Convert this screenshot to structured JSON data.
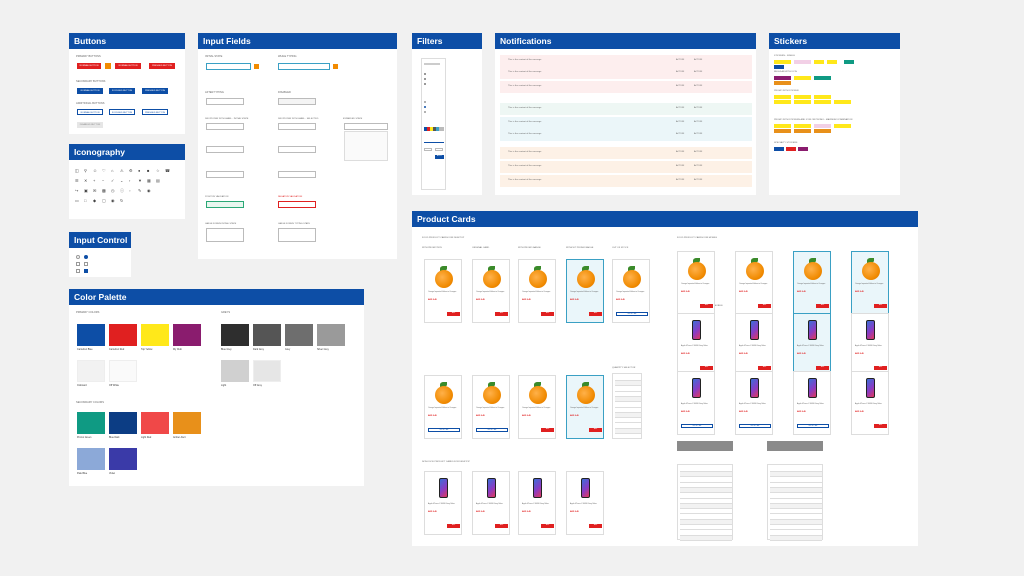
{
  "panels": {
    "buttons": "Buttons",
    "iconography": "Iconography",
    "input_control": "Input Control",
    "color_palette": "Color Palette",
    "input_fields": "Input Fields",
    "filters": "Filters",
    "notifications": "Notifications",
    "stickers": "Stickers",
    "product_cards": "Product Cards"
  },
  "buttons": {
    "primary_label": "PRIMARY BUTTONS",
    "secondary_label": "SECONDARY BUTTONS",
    "additional_label": "ADDITIONAL BUTTONS",
    "normal": "NORMAL BUTTON",
    "focused": "FOCUSED BUTTON",
    "pressed": "PRESSED BUTTON",
    "disabled": "DISABLED BUTTON"
  },
  "palette": {
    "primary_label": "PRIMARY COLORS",
    "secondary_label": "SECONDARY COLORS",
    "grays_label": "GREYS",
    "primary": [
      {
        "name": "Carrefour Blue",
        "color": "#0d4ea6"
      },
      {
        "name": "Carrefour Red",
        "color": "#e02020"
      },
      {
        "name": "Top Yellow",
        "color": "#ffe81a"
      },
      {
        "name": "My Club",
        "color": "#8a1c6e"
      },
      {
        "name": "Clubcard",
        "color": "#f2f2f2"
      },
      {
        "name": "Off White",
        "color": "#fafafa"
      }
    ],
    "secondary": [
      {
        "name": "Promo Green",
        "color": "#0f9a83"
      },
      {
        "name": "Blue Dark",
        "color": "#0c3d84"
      },
      {
        "name": "Light Red",
        "color": "#f04848"
      },
      {
        "name": "Amber Alert",
        "color": "#e8901a"
      },
      {
        "name": "Pale Blue",
        "color": "#8ca9d8"
      },
      {
        "name": "Violet",
        "color": "#3a3aa8"
      }
    ],
    "grays": [
      {
        "name": "Blue Grey",
        "color": "#2e2e2e"
      },
      {
        "name": "Dark Grey",
        "color": "#555555"
      },
      {
        "name": "Grey",
        "color": "#6e6e6e"
      },
      {
        "name": "Silver Grey",
        "color": "#9a9a9a"
      },
      {
        "name": "Light",
        "color": "#d0d0d0"
      },
      {
        "name": "Off Grey",
        "color": "#e6e6e6"
      }
    ]
  },
  "inputs": {
    "initial": "INITIAL STATE",
    "while_typing": "WHILE TYPING",
    "after_typing": "AFTER TYPING",
    "disabled": "DISABLED",
    "dropdown_initial": "DROPDOWN WITH LABEL - INITIAL STATE",
    "dropdown_selected": "DROPDOWN WITH LABEL - SELECTED",
    "expanded": "EXPANDED STATE",
    "positive": "POSITIVE VALIDATION",
    "negative": "NEGATIVE VALIDATION",
    "large_initial": "LARGE FORMS INITIAL STATE",
    "large_typing": "LARGE FORMS TYPING STATE"
  },
  "filters": {
    "apply": "APPLY"
  },
  "notifications": {
    "text": "This is the content of the message",
    "action1": "ACTION",
    "action2": "ACTION"
  },
  "stickers": {
    "single": "STICKERS - SINGLE",
    "regular": "REGULAR WITH ICON",
    "promo": "PROMO WITH STICKER",
    "promo_combined": "PROMO WITH STICKERS AND ICON OR PROMO - MAXIMUM COMBINATION",
    "specialty": "SPECIALTY STICKERS"
  },
  "cards": {
    "food_section": "FOOD PRODUCT CARDS FOR DESKTOP",
    "food_mobile": "FOOD PRODUCT CARDS FOR MOBILE",
    "nonfood_desktop": "NON-FOOD PRODUCT CARDS FOR DESKTOP",
    "nonfood_mobile": "NON-FOOD PRODUCT CARDS FOR MOBILE",
    "with_promotion": "WITH PROMOTION",
    "original": "ORIGINAL CARD",
    "with_promo_badge": "WITH PROMO BADGE",
    "without_promo": "WITHOUT PROMO BADGE",
    "out_of_stock": "OUT OF STOCK",
    "quantity_selector": "QUANTITY SELECTOR",
    "food_name": "Orange Imported Valencia Oranges",
    "phone_name": "Apple iPhone X 64GB Grey Silver",
    "price": "AED 8.49",
    "add": "ADD",
    "notify": "NOTIFY ME"
  }
}
